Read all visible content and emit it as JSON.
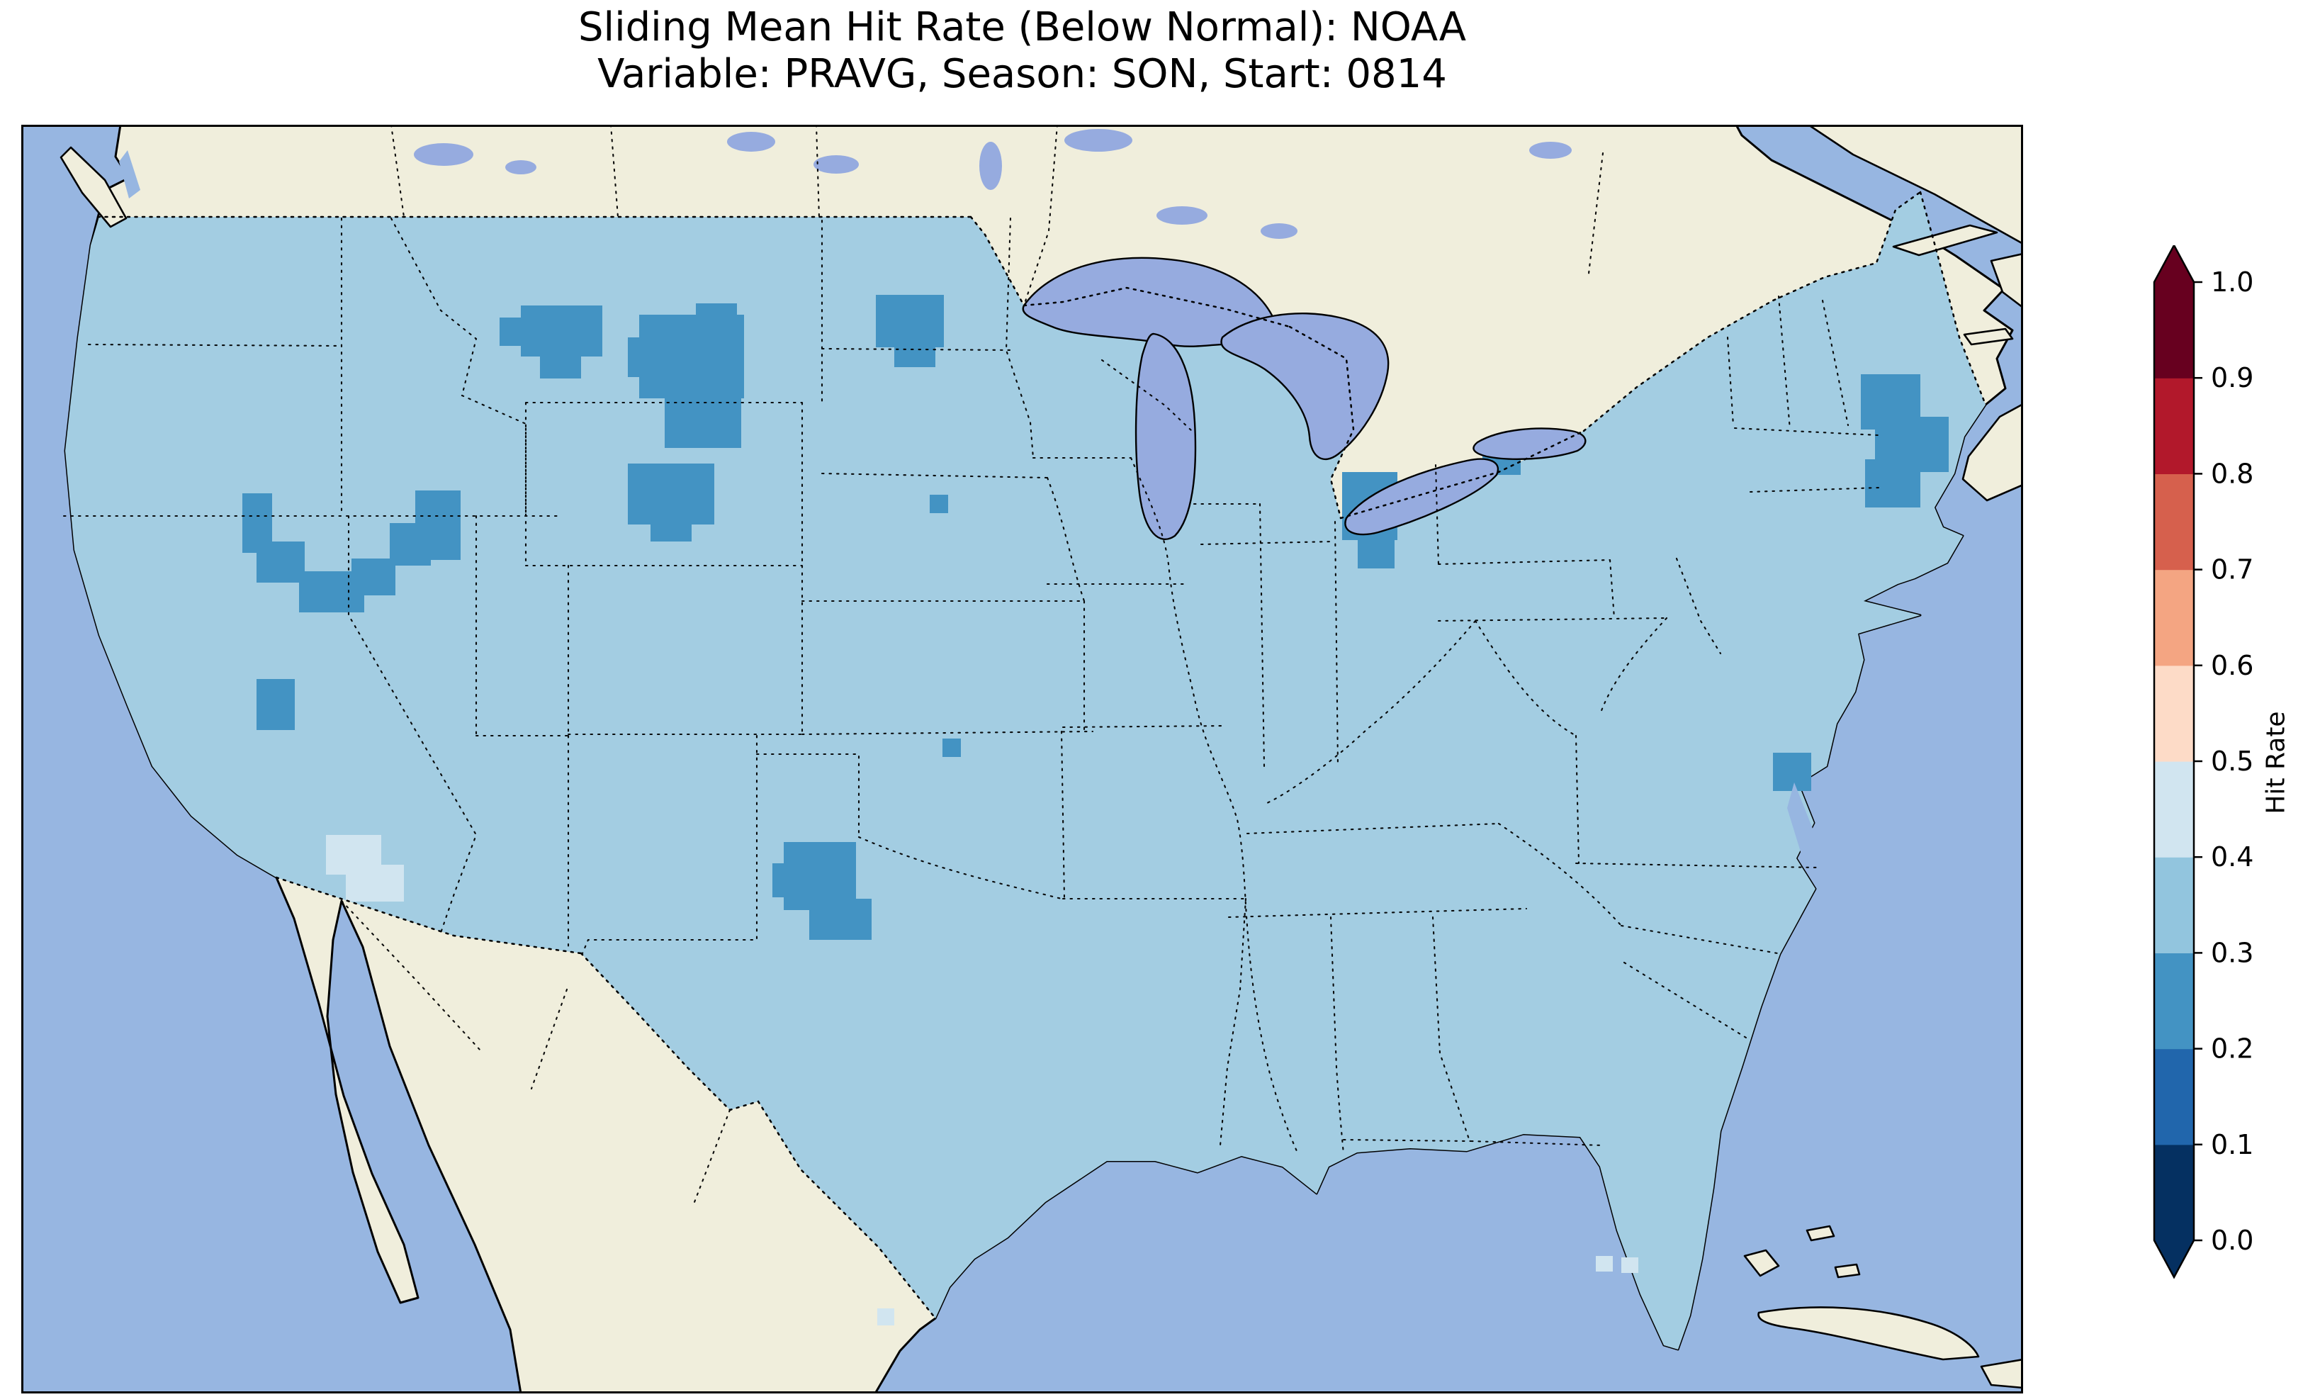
{
  "figure": {
    "title_line1": "Sliding Mean Hit Rate (Below Normal): NOAA",
    "title_line2": "Variable: PRAVG, Season: SON, Start: 0814",
    "source": "NOAA",
    "variable": "PRAVG",
    "season": "SON",
    "start": "0814",
    "metric": "Sliding Mean Hit Rate (Below Normal)"
  },
  "colorbar": {
    "label": "Hit Rate",
    "tick_labels": [
      "0.0",
      "0.1",
      "0.2",
      "0.3",
      "0.4",
      "0.5",
      "0.6",
      "0.7",
      "0.8",
      "0.9",
      "1.0"
    ],
    "band_colors_bottom_to_top": [
      "#053061",
      "#2166ac",
      "#4393c3",
      "#92c5de",
      "#d1e5f0",
      "#fddbc7",
      "#f4a582",
      "#d6604d",
      "#b2182b",
      "#67001f"
    ],
    "extend_under_color": "#053061",
    "extend_over_color": "#67001f"
  },
  "map": {
    "palette": {
      "ocean": "#97b6e1",
      "land": "#f0eedc",
      "lake": "#96abdf",
      "base": "#a3cde2",
      "low": "#4393c3",
      "mid": "#d1e5f0",
      "coast": "#000000"
    }
  },
  "chart_data": {
    "type": "heatmap",
    "title": "Sliding Mean Hit Rate (Below Normal): NOAA",
    "subtitle": "Variable: PRAVG, Season: SON, Start: 0814",
    "region": "Contiguous United States (gridded cells over CONUS; Canada and Mexico unshaded)",
    "colorbar_label": "Hit Rate",
    "colorbar_ticks": [
      0.0,
      0.1,
      0.2,
      0.3,
      0.4,
      0.5,
      0.6,
      0.7,
      0.8,
      0.9,
      1.0
    ],
    "colorbar_range": [
      0.0,
      1.0
    ],
    "colorbar_extend": "both",
    "colormap": "RdBu reversed orientation (dark blue = 0.0 low, dark red = 1.0 high), 10 discrete 0.1-wide bins",
    "dominant_value_bin": [
      0.3,
      0.4
    ],
    "values_by_region": [
      {
        "region": "Most of the contiguous United States",
        "hit_rate_bin": "0.3-0.4"
      },
      {
        "region": "Central Montana patch",
        "hit_rate_bin": "0.2-0.3"
      },
      {
        "region": "North-central Wyoming / Bighorn area (large patch)",
        "hit_rate_bin": "0.2-0.3"
      },
      {
        "region": "Southwest Wyoming / Wind River patch",
        "hit_rate_bin": "0.2-0.3"
      },
      {
        "region": "Eastern Montana - western North Dakota patch",
        "hit_rate_bin": "0.2-0.3"
      },
      {
        "region": "Nevada-Utah arc (curved band across Great Basin)",
        "hit_rate_bin": "0.2-0.3"
      },
      {
        "region": "Central Arizona small patch",
        "hit_rate_bin": "0.2-0.3"
      },
      {
        "region": "North-central Texas patch",
        "hit_rate_bin": "0.2-0.3"
      },
      {
        "region": "Northern Ohio south of Lake Erie",
        "hit_rate_bin": "0.2-0.3"
      },
      {
        "region": "South shore of Lake Ontario (small cells)",
        "hit_rate_bin": "0.2-0.3"
      },
      {
        "region": "Southern New England (MA/CT/NH)",
        "hit_rate_bin": "0.2-0.3"
      },
      {
        "region": "Coastal North Carolina single cell",
        "hit_rate_bin": "0.2-0.3"
      },
      {
        "region": "Isolated cells in Nebraska, Oklahoma, Wisconsin",
        "hit_rate_bin": "0.2-0.3"
      },
      {
        "region": "Southwest New Mexico border area (pale patch)",
        "hit_rate_bin": "0.4-0.5"
      },
      {
        "region": "Scattered pale coastal cells (south Texas coast, south Florida)",
        "hit_rate_bin": "0.4-0.5"
      }
    ],
    "legend_position": "right vertical colorbar with pointed extend arrows at both ends",
    "grid": false
  }
}
